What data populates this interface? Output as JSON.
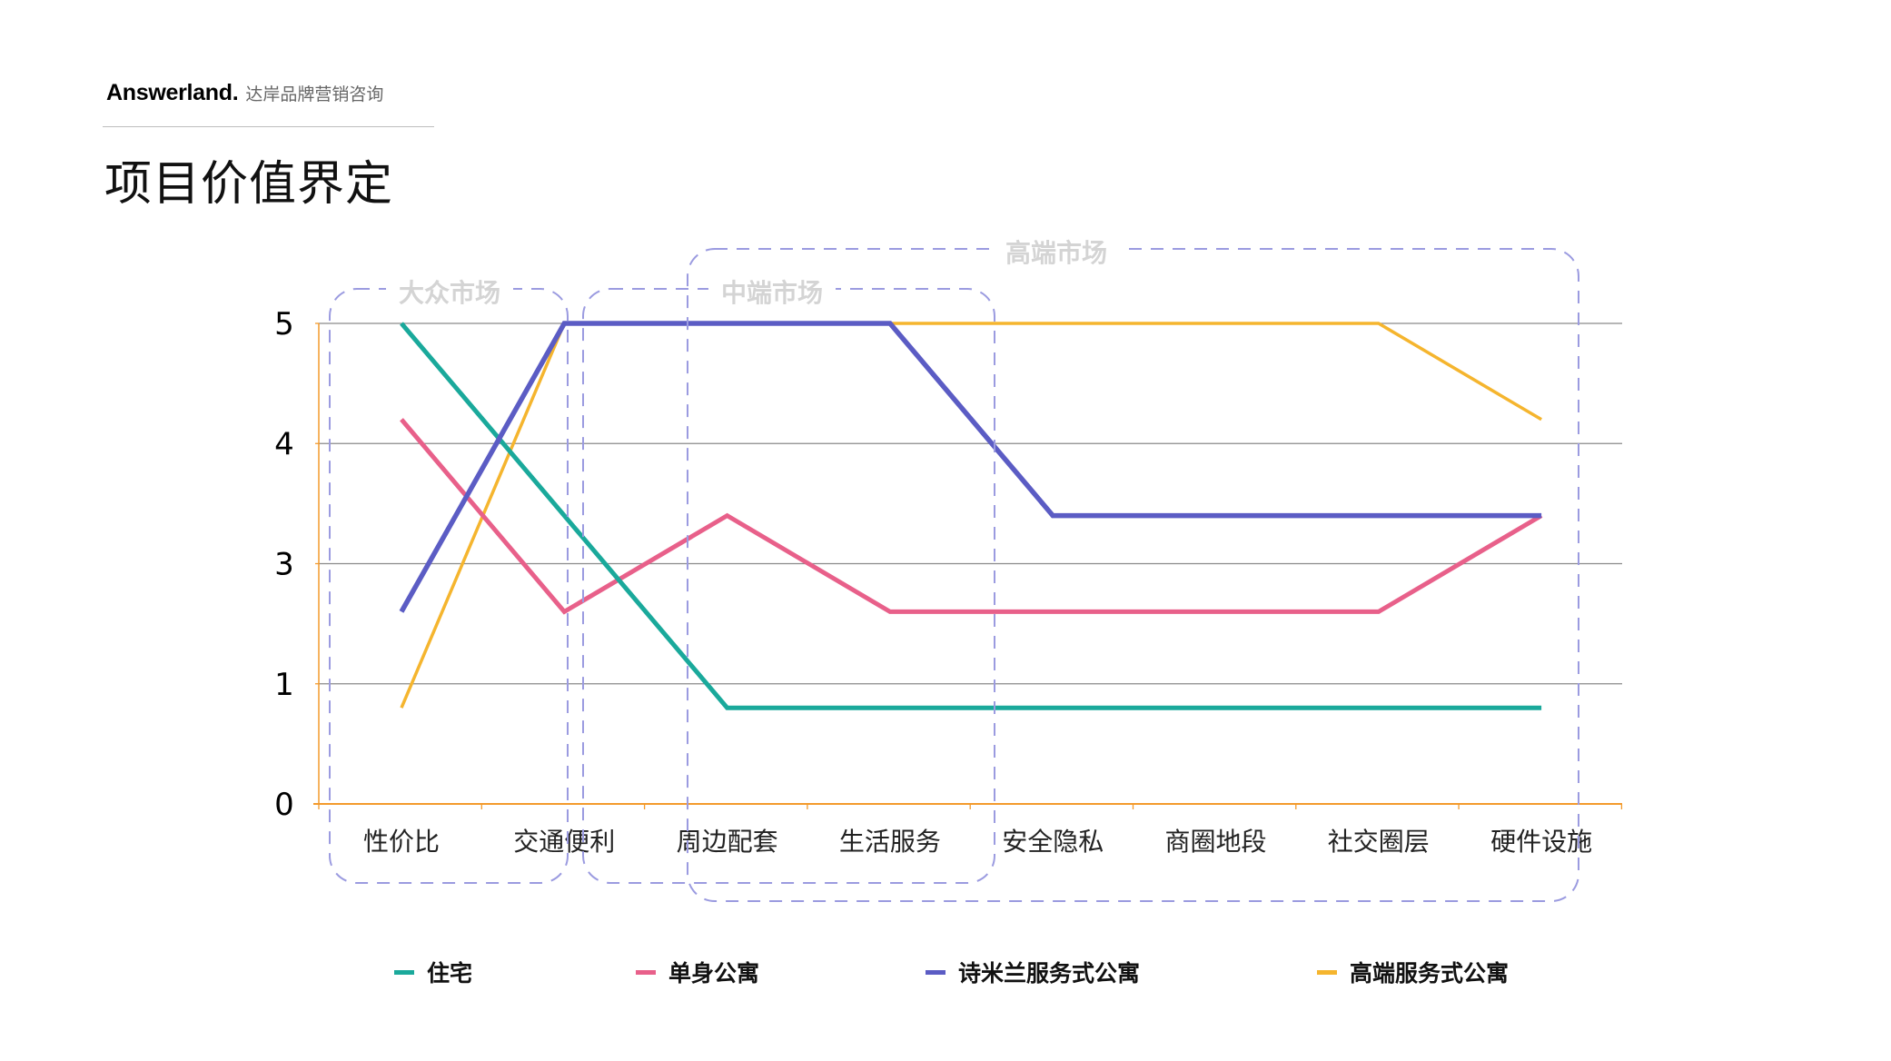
{
  "header": {
    "brand": "Answerland.",
    "brand_sub": "达岸品牌营销咨询",
    "title": "项目价值界定"
  },
  "colors": {
    "住宅": "#1aa99b",
    "单身公寓": "#e8608a",
    "诗米兰服务式公寓": "#5b5cc4",
    "高端服务式公寓": "#f5b52e",
    "grid": "#8a8a8a",
    "axis": "#f39a2c",
    "segment_box": "#9b9be0",
    "segment_label": "#d4d4d4"
  },
  "chart_data": {
    "type": "line",
    "title": "项目价值界定",
    "xlabel": "",
    "ylabel": "",
    "categories": [
      "性价比",
      "交通便利",
      "周边配套",
      "生活服务",
      "安全隐私",
      "商圈地段",
      "社交圈层",
      "硬件设施"
    ],
    "y_ticks": [
      {
        "label": "0",
        "position": 0
      },
      {
        "label": "1",
        "position": 1
      },
      {
        "label": "3",
        "position": 2
      },
      {
        "label": "4",
        "position": 3
      },
      {
        "label": "5",
        "position": 4
      }
    ],
    "ylim": [
      0,
      4
    ],
    "grid": true,
    "legend_position": "bottom",
    "series": [
      {
        "name": "住宅",
        "values": [
          4.0,
          2.4,
          0.8,
          0.8,
          0.8,
          0.8,
          0.8,
          0.8
        ]
      },
      {
        "name": "单身公寓",
        "values": [
          3.2,
          1.6,
          2.4,
          1.6,
          1.6,
          1.6,
          1.6,
          2.4
        ]
      },
      {
        "name": "诗米兰服务式公寓",
        "values": [
          1.6,
          4.0,
          4.0,
          4.0,
          2.4,
          2.4,
          2.4,
          2.4
        ]
      },
      {
        "name": "高端服务式公寓",
        "values": [
          0.8,
          4.0,
          4.0,
          4.0,
          4.0,
          4.0,
          4.0,
          3.2
        ]
      }
    ],
    "annotations": [
      {
        "label": "大众市场",
        "covers": [
          "性价比",
          "交通便利"
        ]
      },
      {
        "label": "中端市场",
        "covers": [
          "交通便利",
          "周边配套",
          "生活服务"
        ]
      },
      {
        "label": "高端市场",
        "covers": [
          "周边配套",
          "生活服务",
          "安全隐私",
          "商圈地段",
          "社交圈层",
          "硬件设施"
        ]
      }
    ]
  },
  "legend": [
    {
      "label": "住宅"
    },
    {
      "label": "单身公寓"
    },
    {
      "label": "诗米兰服务式公寓"
    },
    {
      "label": "高端服务式公寓"
    }
  ]
}
